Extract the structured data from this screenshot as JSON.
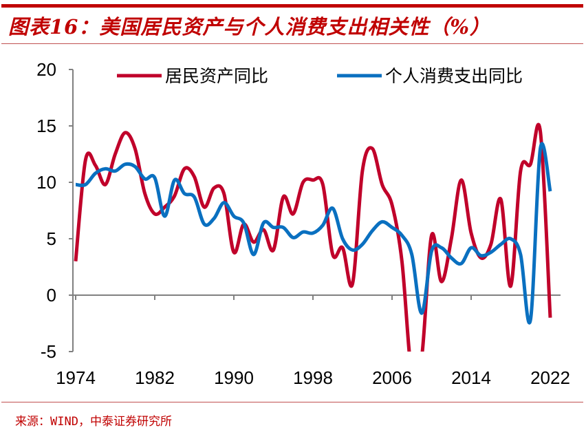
{
  "title": "图表16：美国居民资产与个人消费支出相关性（%）",
  "source": "来源：WIND，中泰证券研究所",
  "chart_data": {
    "type": "line",
    "title": "图表16：美国居民资产与个人消费支出相关性（%）",
    "xlabel": "",
    "ylabel": "",
    "ylim": [
      -5,
      20
    ],
    "xlim": [
      1974,
      2022
    ],
    "yticks": [
      "20",
      "15",
      "10",
      "5",
      "0",
      "-5"
    ],
    "xticks": [
      "1974",
      "1982",
      "1990",
      "1998",
      "2006",
      "2014",
      "2022"
    ],
    "grid": false,
    "legend": "top",
    "x": [
      1974,
      1975,
      1976,
      1977,
      1978,
      1979,
      1980,
      1981,
      1982,
      1983,
      1984,
      1985,
      1986,
      1987,
      1988,
      1989,
      1990,
      1991,
      1992,
      1993,
      1994,
      1995,
      1996,
      1997,
      1998,
      1999,
      2000,
      2001,
      2002,
      2003,
      2004,
      2005,
      2006,
      2007,
      2008,
      2009,
      2010,
      2011,
      2012,
      2013,
      2014,
      2015,
      2016,
      2017,
      2018,
      2019,
      2020,
      2021,
      2022
    ],
    "series": [
      {
        "name": "居民资产同比",
        "color": "#c0002a",
        "values": [
          3.0,
          12.0,
          11.5,
          9.8,
          12.5,
          14.4,
          13.0,
          9.0,
          7.2,
          7.8,
          8.8,
          11.2,
          10.5,
          7.8,
          9.5,
          9.0,
          3.8,
          6.3,
          4.7,
          5.8,
          4.0,
          8.7,
          7.2,
          10.0,
          10.2,
          9.8,
          3.6,
          4.2,
          1.0,
          11.0,
          13.0,
          9.8,
          8.0,
          3.0,
          -7.0,
          -5.5,
          5.3,
          1.2,
          5.0,
          10.2,
          5.5,
          3.3,
          4.5,
          8.5,
          0.8,
          11.0,
          11.6,
          14.5,
          -2.0
        ]
      },
      {
        "name": "个人消费支出同比",
        "color": "#0a70c0",
        "values": [
          9.8,
          9.8,
          10.8,
          11.2,
          11.0,
          11.6,
          11.4,
          10.3,
          10.4,
          7.0,
          10.2,
          9.0,
          8.7,
          6.3,
          6.8,
          8.2,
          7.0,
          6.4,
          3.6,
          6.4,
          6.0,
          6.0,
          5.1,
          5.6,
          5.5,
          6.2,
          7.7,
          5.0,
          4.0,
          4.5,
          5.7,
          6.5,
          6.0,
          5.3,
          3.6,
          -1.6,
          3.9,
          4.2,
          3.3,
          2.8,
          4.2,
          3.5,
          3.8,
          4.5,
          5.0,
          3.6,
          -2.2,
          13.0,
          9.2
        ]
      }
    ]
  }
}
